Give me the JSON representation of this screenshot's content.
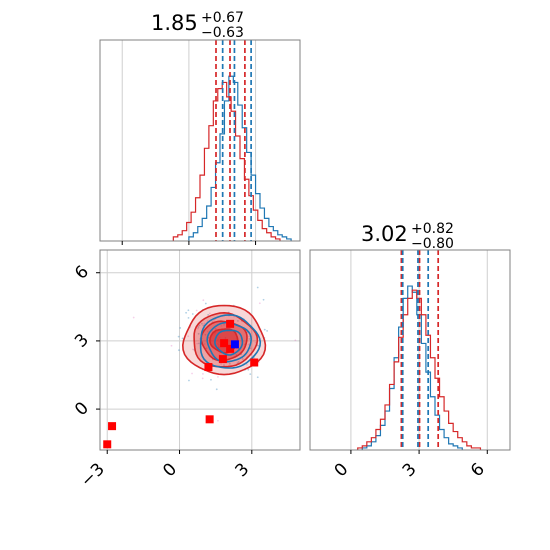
{
  "chart_data": [
    {
      "type": "histogram",
      "panel": "marginal-top-left",
      "title": {
        "value": "1.85",
        "plus": "+0.67",
        "minus": "−0.63"
      },
      "xlim": [
        -4,
        5
      ],
      "grid": true,
      "tick_labels_shown": false,
      "quantile_lines": [
        {
          "name": "red",
          "color": "#d62728",
          "x": [
            1.22,
            1.85,
            2.52
          ]
        },
        {
          "name": "blue",
          "color": "#1f77b4",
          "x": [
            1.52,
            2.05,
            2.8
          ]
        }
      ],
      "series": [
        {
          "name": "blue",
          "color": "#1f77b4",
          "bins": [
            0.1,
            0.3,
            0.5,
            0.7,
            0.9,
            1.1,
            1.3,
            1.5,
            1.7,
            1.9,
            2.1,
            2.3,
            2.5,
            2.7,
            2.9,
            3.1,
            3.3,
            3.5,
            3.7,
            3.9,
            4.1,
            4.3,
            4.5
          ],
          "values": [
            0.02,
            0.04,
            0.07,
            0.11,
            0.17,
            0.26,
            0.38,
            0.52,
            0.68,
            0.8,
            0.77,
            0.66,
            0.55,
            0.43,
            0.32,
            0.23,
            0.16,
            0.11,
            0.07,
            0.05,
            0.03,
            0.02,
            0.01
          ]
        },
        {
          "name": "red",
          "color": "#d62728",
          "bins": [
            -0.6,
            -0.4,
            -0.2,
            0.0,
            0.2,
            0.4,
            0.6,
            0.8,
            1.0,
            1.2,
            1.4,
            1.6,
            1.8,
            2.0,
            2.2,
            2.4,
            2.6,
            2.8,
            3.0,
            3.2,
            3.4,
            3.6,
            3.8,
            4.0
          ],
          "values": [
            0.02,
            0.03,
            0.05,
            0.09,
            0.14,
            0.21,
            0.32,
            0.45,
            0.56,
            0.68,
            0.74,
            0.77,
            0.7,
            0.63,
            0.51,
            0.4,
            0.3,
            0.22,
            0.15,
            0.1,
            0.06,
            0.04,
            0.02,
            0.01
          ]
        }
      ]
    },
    {
      "type": "scatter",
      "panel": "joint-bottom-left",
      "xlim": [
        -3.3,
        5.0
      ],
      "ylim": [
        -1.8,
        7.0
      ],
      "grid": true,
      "x_ticks": [
        -3,
        0,
        3
      ],
      "x_tick_labels": [
        "−3",
        "0",
        "3"
      ],
      "y_ticks": [
        0,
        3,
        6
      ],
      "y_tick_labels": [
        "0",
        "3",
        "6"
      ],
      "contours": [
        {
          "name": "red",
          "color": "#d62728",
          "center": [
            1.85,
            3.02
          ],
          "spread": [
            1.05,
            0.95
          ],
          "levels": [
            0.55,
            0.9,
            1.25,
            1.6
          ]
        },
        {
          "name": "blue",
          "color": "#1f77b4",
          "center": [
            2.05,
            2.95
          ],
          "spread": [
            0.95,
            0.9
          ],
          "levels": [
            0.6,
            0.95,
            1.3
          ]
        }
      ],
      "series": [
        {
          "name": "red markers",
          "color": "#ff0000",
          "marker": "square",
          "points": [
            [
              -3.0,
              -1.55
            ],
            [
              -2.8,
              -0.75
            ],
            [
              1.25,
              -0.45
            ],
            [
              1.2,
              1.85
            ],
            [
              1.8,
              2.2
            ],
            [
              2.1,
              2.65
            ],
            [
              1.85,
              2.9
            ],
            [
              3.1,
              2.05
            ],
            [
              2.1,
              3.75
            ]
          ]
        },
        {
          "name": "blue marker",
          "color": "#0000ff",
          "marker": "square",
          "points": [
            [
              2.3,
              2.85
            ]
          ]
        }
      ]
    },
    {
      "type": "histogram",
      "panel": "marginal-bottom-right",
      "title": {
        "value": "3.02",
        "plus": "+0.82",
        "minus": "−0.80"
      },
      "xlim": [
        -1.8,
        7.0
      ],
      "grid": true,
      "x_ticks": [
        0,
        3,
        6
      ],
      "x_tick_labels": [
        "0",
        "3",
        "6"
      ],
      "quantile_lines": [
        {
          "name": "red",
          "color": "#d62728",
          "x": [
            2.22,
            3.02,
            3.84
          ]
        },
        {
          "name": "blue",
          "color": "#1f77b4",
          "x": [
            2.28,
            2.95,
            3.4
          ]
        }
      ],
      "series": [
        {
          "name": "blue",
          "color": "#1f77b4",
          "bins": [
            0.6,
            0.8,
            1.0,
            1.2,
            1.4,
            1.6,
            1.8,
            2.0,
            2.2,
            2.4,
            2.6,
            2.8,
            3.0,
            3.2,
            3.4,
            3.6,
            3.8,
            4.0,
            4.2,
            4.4,
            4.6,
            4.8
          ],
          "values": [
            0.01,
            0.02,
            0.04,
            0.07,
            0.12,
            0.19,
            0.3,
            0.45,
            0.6,
            0.74,
            0.8,
            0.77,
            0.66,
            0.52,
            0.38,
            0.26,
            0.17,
            0.1,
            0.06,
            0.03,
            0.02,
            0.01
          ]
        },
        {
          "name": "red",
          "color": "#d62728",
          "bins": [
            0.4,
            0.6,
            0.8,
            1.0,
            1.2,
            1.4,
            1.6,
            1.8,
            2.0,
            2.2,
            2.4,
            2.6,
            2.8,
            3.0,
            3.2,
            3.4,
            3.6,
            3.8,
            4.0,
            4.2,
            4.4,
            4.6,
            4.8,
            5.0,
            5.2,
            5.4,
            5.6
          ],
          "values": [
            0.01,
            0.02,
            0.04,
            0.06,
            0.1,
            0.15,
            0.22,
            0.32,
            0.43,
            0.55,
            0.66,
            0.74,
            0.78,
            0.74,
            0.66,
            0.56,
            0.45,
            0.35,
            0.26,
            0.19,
            0.13,
            0.09,
            0.06,
            0.04,
            0.02,
            0.01,
            0.01
          ]
        }
      ]
    }
  ]
}
